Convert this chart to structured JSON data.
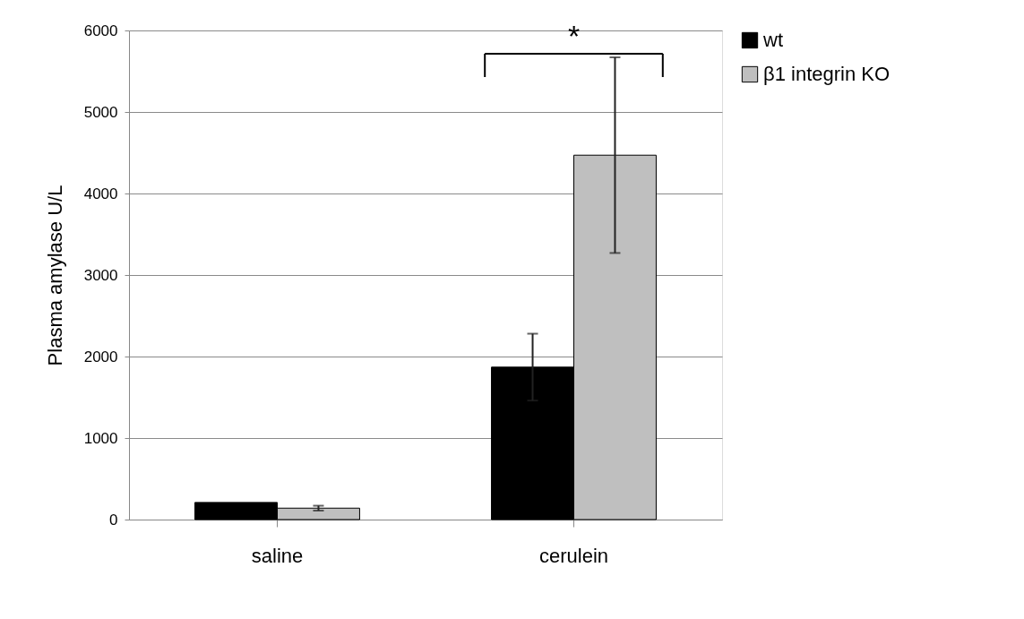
{
  "chart_data": {
    "type": "bar",
    "ylabel": "Plasma amylase U/L",
    "categories": [
      "saline",
      "cerulein"
    ],
    "series": [
      {
        "name": "wt",
        "color": "#000000",
        "values": [
          210,
          1870
        ],
        "errors": [
          null,
          410
        ]
      },
      {
        "name": "β1 integrin KO",
        "color": "#bfbfbf",
        "values": [
          140,
          4470
        ],
        "errors": [
          30,
          1200
        ]
      }
    ],
    "ylim": [
      0,
      6000
    ],
    "yticks": [
      0,
      1000,
      2000,
      3000,
      4000,
      5000,
      6000
    ],
    "grid": "y",
    "legend": "right",
    "annotations": [
      "*"
    ]
  }
}
